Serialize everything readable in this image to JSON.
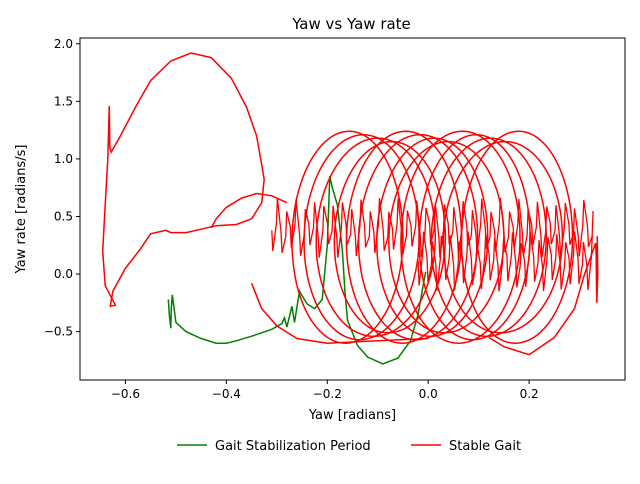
{
  "chart_data": {
    "type": "line",
    "title": "Yaw vs Yaw rate",
    "xlabel": "Yaw [radians]",
    "ylabel": "Yaw rate [radians/s]",
    "xlim": [
      -0.69,
      0.39
    ],
    "ylim": [
      -0.92,
      2.05
    ],
    "xticks": [
      -0.6,
      -0.4,
      -0.2,
      0.0,
      0.2
    ],
    "xtick_labels": [
      "−0.6",
      "−0.4",
      "−0.2",
      "0.0",
      "0.2"
    ],
    "yticks": [
      -0.5,
      0.0,
      0.5,
      1.0,
      1.5,
      2.0
    ],
    "ytick_labels": [
      "−0.5",
      "0.0",
      "0.5",
      "1.0",
      "1.5",
      "2.0"
    ],
    "grid": false,
    "legend_position": "bottom-center",
    "series": [
      {
        "name": "Gait Stabilization Period",
        "color": "#008000",
        "points": [
          [
            -0.515,
            -0.22
          ],
          [
            -0.513,
            -0.35
          ],
          [
            -0.51,
            -0.47
          ],
          [
            -0.509,
            -0.3
          ],
          [
            -0.507,
            -0.18
          ],
          [
            -0.5,
            -0.42
          ],
          [
            -0.48,
            -0.5
          ],
          [
            -0.45,
            -0.56
          ],
          [
            -0.42,
            -0.6
          ],
          [
            -0.4,
            -0.6
          ],
          [
            -0.38,
            -0.58
          ],
          [
            -0.35,
            -0.54
          ],
          [
            -0.31,
            -0.48
          ],
          [
            -0.29,
            -0.43
          ],
          [
            -0.285,
            -0.38
          ],
          [
            -0.28,
            -0.46
          ],
          [
            -0.27,
            -0.28
          ],
          [
            -0.265,
            -0.42
          ],
          [
            -0.255,
            -0.15
          ],
          [
            -0.24,
            -0.26
          ],
          [
            -0.225,
            -0.3
          ],
          [
            -0.21,
            -0.22
          ],
          [
            -0.2,
            0.25
          ],
          [
            -0.195,
            0.85
          ],
          [
            -0.19,
            0.75
          ],
          [
            -0.18,
            0.6
          ],
          [
            -0.17,
            0.2
          ],
          [
            -0.165,
            -0.15
          ],
          [
            -0.16,
            -0.4
          ],
          [
            -0.14,
            -0.62
          ],
          [
            -0.12,
            -0.72
          ],
          [
            -0.09,
            -0.78
          ],
          [
            -0.06,
            -0.73
          ],
          [
            -0.035,
            -0.58
          ],
          [
            -0.02,
            -0.35
          ],
          [
            -0.01,
            -0.1
          ],
          [
            -0.005,
            0.02
          ]
        ]
      },
      {
        "name": "Stable Gait",
        "color": "#ff0000",
        "points": [
          [
            -0.632,
            1.46
          ],
          [
            -0.631,
            1.1
          ],
          [
            -0.628,
            1.06
          ],
          [
            -0.61,
            1.2
          ],
          [
            -0.58,
            1.45
          ],
          [
            -0.55,
            1.68
          ],
          [
            -0.51,
            1.85
          ],
          [
            -0.47,
            1.92
          ],
          [
            -0.43,
            1.88
          ],
          [
            -0.39,
            1.7
          ],
          [
            -0.36,
            1.45
          ],
          [
            -0.34,
            1.2
          ],
          [
            -0.33,
            0.95
          ],
          [
            -0.325,
            0.82
          ],
          [
            -0.33,
            0.62
          ],
          [
            -0.35,
            0.48
          ],
          [
            -0.38,
            0.43
          ],
          [
            -0.42,
            0.42
          ],
          [
            -0.45,
            0.39
          ],
          [
            -0.48,
            0.36
          ],
          [
            -0.5,
            0.36
          ],
          [
            -0.51,
            0.36
          ],
          [
            -0.52,
            0.38
          ],
          [
            -0.55,
            0.35
          ],
          [
            -0.57,
            0.22
          ],
          [
            -0.6,
            0.05
          ],
          [
            -0.625,
            -0.15
          ],
          [
            -0.63,
            -0.28
          ],
          [
            -0.62,
            -0.27
          ],
          [
            -0.64,
            -0.1
          ],
          [
            -0.645,
            0.2
          ],
          [
            -0.64,
            0.6
          ],
          [
            -0.635,
            1.0
          ],
          [
            -0.632,
            1.46
          ]
        ]
      }
    ]
  },
  "legend": {
    "items": [
      {
        "label": "Gait Stabilization Period",
        "color": "#008000"
      },
      {
        "label": "Stable Gait",
        "color": "#ff0000"
      }
    ]
  }
}
